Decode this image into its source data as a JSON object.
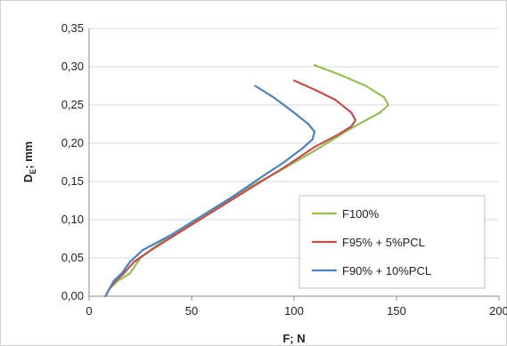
{
  "chart_data": {
    "type": "line",
    "xlabel": "F; N",
    "ylabel_main": "D",
    "ylabel_sub": "E",
    "ylabel_rest": "; mm",
    "xlim": [
      0,
      200
    ],
    "ylim": [
      0,
      0.35
    ],
    "x_ticks": [
      0,
      50,
      100,
      150,
      200
    ],
    "x_tick_labels": [
      "0",
      "50",
      "100",
      "150",
      "200"
    ],
    "y_ticks": [
      0,
      0.05,
      0.1,
      0.15,
      0.2,
      0.25,
      0.3,
      0.35
    ],
    "y_tick_labels": [
      "0,00",
      "0,05",
      "0,10",
      "0,15",
      "0,20",
      "0,25",
      "0,30",
      "0,35"
    ],
    "grid": "horizontal",
    "legend_position": "bottom-right",
    "series": [
      {
        "name": "F100%",
        "color": "#9bbb59",
        "points": [
          [
            8,
            0
          ],
          [
            10,
            0.01
          ],
          [
            14,
            0.02
          ],
          [
            20,
            0.03
          ],
          [
            25,
            0.05
          ],
          [
            35,
            0.07
          ],
          [
            50,
            0.095
          ],
          [
            65,
            0.12
          ],
          [
            80,
            0.145
          ],
          [
            95,
            0.167
          ],
          [
            110,
            0.19
          ],
          [
            125,
            0.215
          ],
          [
            135,
            0.23
          ],
          [
            142,
            0.24
          ],
          [
            146,
            0.25
          ],
          [
            144,
            0.26
          ],
          [
            135,
            0.275
          ],
          [
            122,
            0.29
          ],
          [
            110,
            0.302
          ]
        ]
      },
      {
        "name": "F95% + 5%PCL",
        "color": "#c0504d",
        "points": [
          [
            8,
            0
          ],
          [
            10,
            0.01
          ],
          [
            13,
            0.02
          ],
          [
            17,
            0.03
          ],
          [
            22,
            0.045
          ],
          [
            30,
            0.06
          ],
          [
            45,
            0.085
          ],
          [
            60,
            0.11
          ],
          [
            78,
            0.14
          ],
          [
            95,
            0.168
          ],
          [
            110,
            0.195
          ],
          [
            122,
            0.212
          ],
          [
            128,
            0.222
          ],
          [
            130,
            0.23
          ],
          [
            128,
            0.24
          ],
          [
            120,
            0.257
          ],
          [
            110,
            0.27
          ],
          [
            100,
            0.282
          ]
        ]
      },
      {
        "name": "F90% + 10%PCL",
        "color": "#4f81bd",
        "points": [
          [
            8,
            0
          ],
          [
            10,
            0.01
          ],
          [
            12,
            0.02
          ],
          [
            16,
            0.03
          ],
          [
            20,
            0.045
          ],
          [
            26,
            0.06
          ],
          [
            40,
            0.08
          ],
          [
            55,
            0.105
          ],
          [
            70,
            0.13
          ],
          [
            82,
            0.152
          ],
          [
            95,
            0.175
          ],
          [
            104,
            0.193
          ],
          [
            109,
            0.205
          ],
          [
            110,
            0.215
          ],
          [
            107,
            0.225
          ],
          [
            100,
            0.24
          ],
          [
            90,
            0.26
          ],
          [
            81,
            0.275
          ]
        ]
      }
    ]
  }
}
